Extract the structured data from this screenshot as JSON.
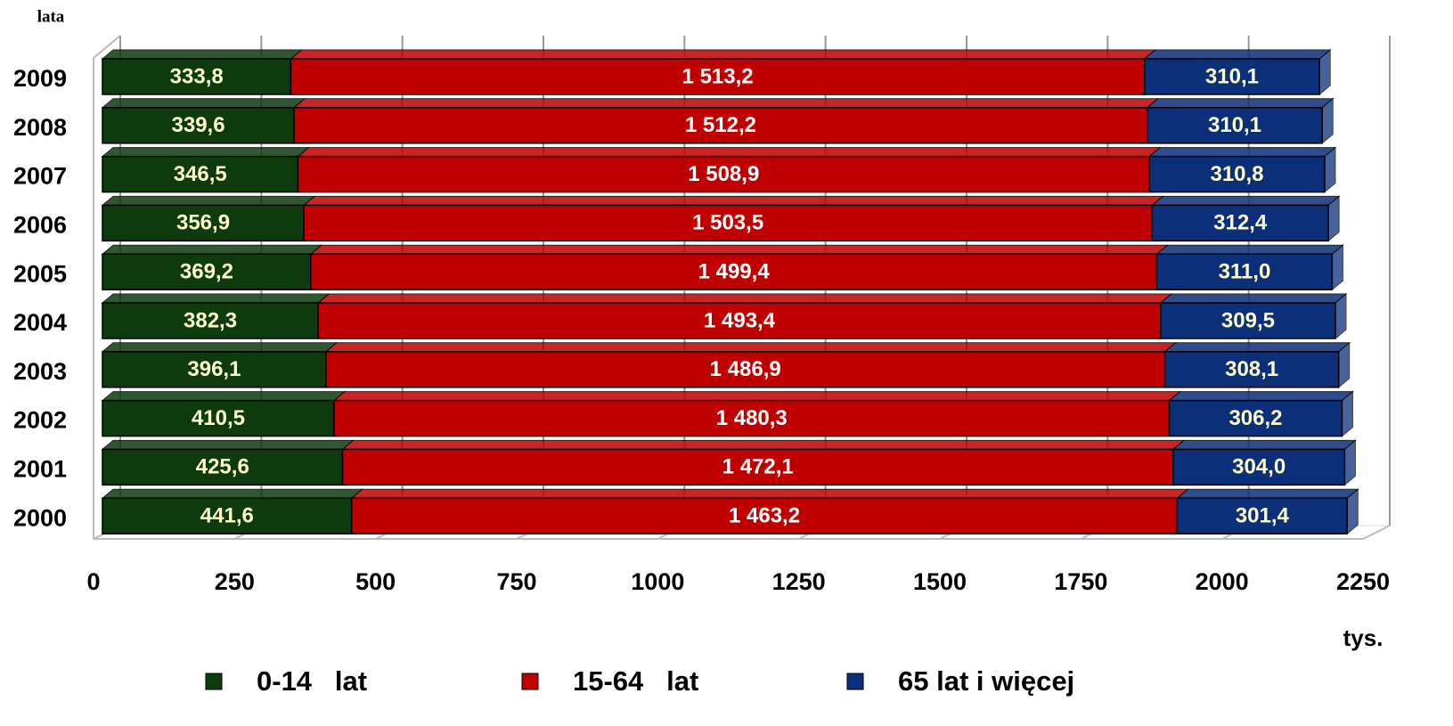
{
  "chart_data": {
    "type": "bar",
    "orientation": "horizontal",
    "stacked": true,
    "y_label": "lata",
    "x_label": "tys.",
    "categories": [
      "2009",
      "2008",
      "2007",
      "2006",
      "2005",
      "2004",
      "2003",
      "2002",
      "2001",
      "2000"
    ],
    "series": [
      {
        "name": "0-14   lat",
        "color": "#0d3b0d",
        "label_color": "#ffffcc",
        "values": [
          333.8,
          339.6,
          346.5,
          356.9,
          369.2,
          382.3,
          396.1,
          410.5,
          425.6,
          441.6
        ],
        "value_labels": [
          "333,8",
          "339,6",
          "346,5",
          "356,9",
          "369,2",
          "382,3",
          "396,1",
          "410,5",
          "425,6",
          "441,6"
        ]
      },
      {
        "name": "15-64   lat",
        "color": "#c00000",
        "label_color": "#ffffff",
        "values": [
          1513.2,
          1512.2,
          1508.9,
          1503.5,
          1499.4,
          1493.4,
          1486.9,
          1480.3,
          1472.1,
          1463.2
        ],
        "value_labels": [
          "1 513,2",
          "1 512,2",
          "1 508,9",
          "1 503,5",
          "1 499,4",
          "1 493,4",
          "1 486,9",
          "1 480,3",
          "1 472,1",
          "1 463,2"
        ]
      },
      {
        "name": "65 lat i więcej",
        "color": "#0b2f78",
        "label_color": "#ffffcc",
        "values": [
          310.1,
          310.1,
          310.8,
          312.4,
          311.0,
          309.5,
          308.1,
          306.2,
          304.0,
          301.4
        ],
        "value_labels": [
          "310,1",
          "310,1",
          "310,8",
          "312,4",
          "311,0",
          "309,5",
          "308,1",
          "306,2",
          "304,0",
          "301,4"
        ]
      }
    ],
    "xlim": [
      0,
      2250
    ],
    "xticks": [
      0,
      250,
      500,
      750,
      1000,
      1250,
      1500,
      1750,
      2000,
      2250
    ],
    "grid": true,
    "legend": "bottom"
  }
}
